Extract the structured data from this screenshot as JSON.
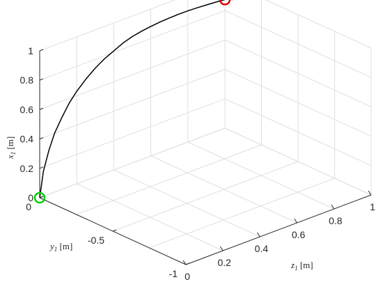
{
  "chart_data": {
    "type": "line3d",
    "title": "",
    "axes": {
      "x1": {
        "label_var": "x",
        "label_sub": "1",
        "label_unit": "[m]",
        "range": [
          0,
          1
        ],
        "ticks": [
          "0",
          "0.2",
          "0.4",
          "0.6",
          "0.8",
          "1"
        ],
        "tick_values": [
          0,
          0.2,
          0.4,
          0.6,
          0.8,
          1
        ]
      },
      "y1": {
        "label_var": "y",
        "label_sub": "1",
        "label_unit": "[m]",
        "range": [
          -1,
          0
        ],
        "ticks": [
          "0",
          "-0.5",
          "-1"
        ],
        "tick_values": [
          0,
          -0.5,
          -1
        ]
      },
      "z1": {
        "label_var": "z",
        "label_sub": "1",
        "label_unit": "[m]",
        "range": [
          0,
          1
        ],
        "ticks": [
          "0",
          "0.2",
          "0.4",
          "0.6",
          "0.8",
          "1"
        ],
        "tick_values": [
          0,
          0.2,
          0.4,
          0.6,
          0.8,
          1
        ]
      }
    },
    "grid": true,
    "series": [
      {
        "color": "#000000",
        "points_zx": [
          [
            0,
            0
          ],
          [
            0.02,
            0.17
          ],
          [
            0.05,
            0.3
          ],
          [
            0.08,
            0.4
          ],
          [
            0.12,
            0.49
          ],
          [
            0.16,
            0.57
          ],
          [
            0.2,
            0.63
          ],
          [
            0.25,
            0.69
          ],
          [
            0.3,
            0.74
          ],
          [
            0.35,
            0.78
          ],
          [
            0.4,
            0.81
          ],
          [
            0.45,
            0.84
          ],
          [
            0.5,
            0.86
          ],
          [
            0.55,
            0.873
          ],
          [
            0.6,
            0.882
          ],
          [
            0.65,
            0.888
          ],
          [
            0.7,
            0.892
          ],
          [
            0.75,
            0.894
          ],
          [
            0.8,
            0.893
          ],
          [
            0.85,
            0.89
          ],
          [
            0.9,
            0.886
          ],
          [
            0.95,
            0.881
          ],
          [
            1.0,
            0.875
          ]
        ]
      }
    ],
    "markers": [
      {
        "role": "start",
        "z": 0,
        "x": 0,
        "color": "#00d000"
      },
      {
        "role": "end",
        "z": 1,
        "x": 0.875,
        "color": "#e00000"
      }
    ]
  }
}
